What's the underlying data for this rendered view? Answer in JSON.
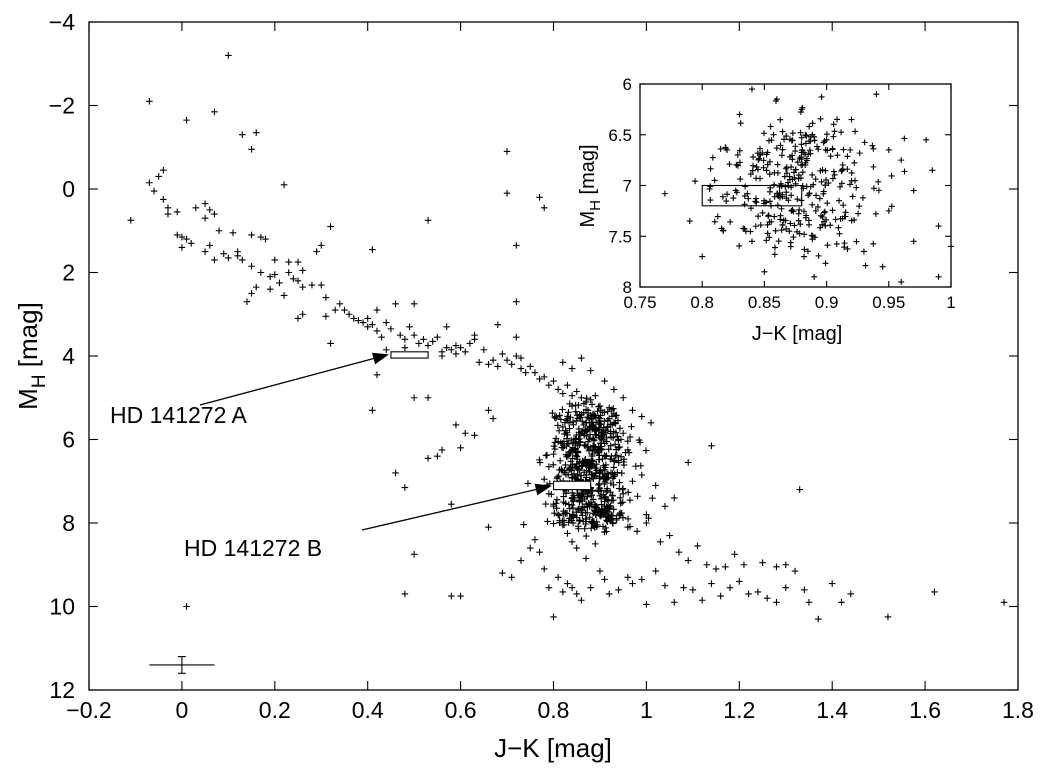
{
  "chart_data": [
    {
      "type": "scatter",
      "xlabel": "J−K [mag]",
      "ylabel": {
        "main": "M",
        "sub": "H",
        "unit": " [mag]"
      },
      "xlim": [
        -0.2,
        1.8
      ],
      "ylim": [
        12,
        -4
      ],
      "y_inverted": true,
      "x_ticks": [
        "−0.2",
        "0",
        "0.2",
        "0.4",
        "0.6",
        "0.8",
        "1",
        "1.2",
        "1.4",
        "1.6",
        "1.8"
      ],
      "y_ticks": [
        "−4",
        "−2",
        "0",
        "2",
        "4",
        "6",
        "8",
        "10",
        "12"
      ],
      "marker": "+",
      "grid": false,
      "error_bar": {
        "x": 0.0,
        "y": 11.4,
        "xerr": 0.07,
        "yerr": 0.2
      },
      "annotations": [
        {
          "text": "HD 141272 A",
          "target": {
            "x": 0.45,
            "y": 3.95
          },
          "box": {
            "x0": 0.45,
            "x1": 0.53,
            "y0": 3.9,
            "y1": 4.05
          }
        },
        {
          "text": "HD 141272 B",
          "target": {
            "x": 0.8,
            "y": 7.1
          },
          "box": {
            "x0": 0.8,
            "x1": 0.88,
            "y0": 7.0,
            "y1": 7.2
          }
        }
      ],
      "points": [
        [
          -0.11,
          0.75
        ],
        [
          -0.07,
          -2.1
        ],
        [
          -0.07,
          -0.15
        ],
        [
          -0.06,
          0.05
        ],
        [
          -0.05,
          -0.3
        ],
        [
          -0.04,
          -0.45
        ],
        [
          -0.04,
          0.25
        ],
        [
          -0.03,
          0.45
        ],
        [
          -0.03,
          0.6
        ],
        [
          -0.01,
          0.55
        ],
        [
          0.01,
          -1.65
        ],
        [
          0.03,
          0.45
        ],
        [
          0.05,
          0.35
        ],
        [
          0.05,
          0.7
        ],
        [
          0.06,
          0.5
        ],
        [
          0.07,
          -1.85
        ],
        [
          0.07,
          0.6
        ],
        [
          0.1,
          -3.2
        ],
        [
          0.13,
          -1.3
        ],
        [
          0.15,
          -0.95
        ],
        [
          0.16,
          -1.35
        ],
        [
          0.22,
          -0.1
        ],
        [
          0.15,
          1.1
        ],
        [
          0.17,
          1.15
        ],
        [
          0.18,
          1.2
        ],
        [
          0.12,
          1.5
        ],
        [
          0.13,
          1.7
        ],
        [
          0.2,
          1.7
        ],
        [
          0.23,
          1.75
        ],
        [
          0.25,
          1.75
        ],
        [
          0.26,
          1.95
        ],
        [
          0.29,
          1.5
        ],
        [
          0.3,
          1.35
        ],
        [
          0.32,
          0.9
        ],
        [
          0.08,
          1.0
        ],
        [
          0.11,
          1.05
        ],
        [
          -0.01,
          1.1
        ],
        [
          0.0,
          1.15
        ],
        [
          0.01,
          1.2
        ],
        [
          0.02,
          1.3
        ],
        [
          -0.0,
          1.4
        ],
        [
          0.06,
          1.35
        ],
        [
          0.05,
          1.5
        ],
        [
          0.07,
          1.7
        ],
        [
          0.09,
          1.55
        ],
        [
          0.1,
          1.65
        ],
        [
          0.12,
          1.6
        ],
        [
          0.15,
          1.85
        ],
        [
          0.17,
          2.0
        ],
        [
          0.19,
          2.1
        ],
        [
          0.2,
          2.05
        ],
        [
          0.21,
          2.25
        ],
        [
          0.23,
          2.0
        ],
        [
          0.24,
          2.15
        ],
        [
          0.25,
          2.2
        ],
        [
          0.26,
          2.35
        ],
        [
          0.28,
          2.3
        ],
        [
          0.19,
          2.4
        ],
        [
          0.15,
          2.5
        ],
        [
          0.14,
          2.7
        ],
        [
          0.16,
          2.35
        ],
        [
          0.22,
          2.55
        ],
        [
          0.25,
          3.1
        ],
        [
          0.26,
          3.0
        ],
        [
          0.3,
          2.3
        ],
        [
          0.31,
          2.6
        ],
        [
          0.31,
          3.05
        ],
        [
          0.32,
          3.7
        ],
        [
          0.33,
          2.9
        ],
        [
          0.34,
          2.75
        ],
        [
          0.35,
          2.9
        ],
        [
          0.36,
          3.0
        ],
        [
          0.37,
          3.1
        ],
        [
          0.38,
          3.15
        ],
        [
          0.39,
          3.2
        ],
        [
          0.4,
          3.1
        ],
        [
          0.4,
          3.3
        ],
        [
          0.41,
          3.25
        ],
        [
          0.42,
          3.4
        ],
        [
          0.42,
          2.9
        ],
        [
          0.43,
          3.55
        ],
        [
          0.44,
          3.2
        ],
        [
          0.45,
          3.35
        ],
        [
          0.46,
          2.75
        ],
        [
          0.47,
          3.5
        ],
        [
          0.48,
          3.6
        ],
        [
          0.48,
          3.8
        ],
        [
          0.49,
          3.3
        ],
        [
          0.5,
          2.75
        ],
        [
          0.5,
          3.5
        ],
        [
          0.51,
          3.7
        ],
        [
          0.52,
          3.6
        ],
        [
          0.53,
          3.75
        ],
        [
          0.54,
          3.65
        ],
        [
          0.55,
          3.55
        ],
        [
          0.56,
          3.9
        ],
        [
          0.57,
          3.8
        ],
        [
          0.58,
          3.85
        ],
        [
          0.59,
          3.95
        ],
        [
          0.6,
          3.8
        ],
        [
          0.62,
          3.7
        ],
        [
          0.63,
          3.5
        ],
        [
          0.64,
          4.15
        ],
        [
          0.66,
          4.2
        ],
        [
          0.67,
          4.1
        ],
        [
          0.68,
          4.25
        ],
        [
          0.7,
          4.1
        ],
        [
          0.71,
          4.2
        ],
        [
          0.72,
          4.0
        ],
        [
          0.73,
          4.3
        ],
        [
          0.74,
          4.4
        ],
        [
          0.75,
          4.25
        ],
        [
          0.76,
          4.4
        ],
        [
          0.77,
          4.55
        ],
        [
          0.78,
          4.5
        ],
        [
          0.79,
          4.7
        ],
        [
          0.8,
          4.6
        ],
        [
          0.81,
          4.8
        ],
        [
          0.82,
          4.9
        ],
        [
          0.83,
          4.7
        ],
        [
          0.84,
          4.95
        ],
        [
          0.85,
          4.85
        ],
        [
          0.86,
          5.0
        ],
        [
          0.87,
          5.1
        ],
        [
          0.88,
          5.05
        ],
        [
          0.89,
          4.95
        ],
        [
          0.9,
          5.2
        ],
        [
          0.91,
          5.35
        ],
        [
          0.92,
          5.5
        ],
        [
          0.93,
          5.6
        ],
        [
          0.63,
          3.6
        ],
        [
          0.56,
          4.0
        ],
        [
          0.57,
          3.3
        ],
        [
          0.59,
          3.75
        ],
        [
          0.61,
          3.9
        ],
        [
          0.65,
          3.85
        ],
        [
          0.69,
          3.95
        ],
        [
          0.72,
          3.55
        ],
        [
          0.73,
          4.05
        ],
        [
          0.68,
          3.25
        ],
        [
          0.44,
          3.85
        ],
        [
          0.42,
          4.45
        ],
        [
          0.41,
          5.3
        ],
        [
          0.5,
          5.0
        ],
        [
          0.53,
          5.0
        ],
        [
          0.53,
          6.45
        ],
        [
          0.55,
          6.4
        ],
        [
          0.56,
          6.25
        ],
        [
          0.59,
          5.65
        ],
        [
          0.61,
          5.85
        ],
        [
          0.63,
          5.9
        ],
        [
          0.66,
          5.3
        ],
        [
          0.67,
          5.5
        ],
        [
          0.46,
          6.8
        ],
        [
          0.48,
          7.15
        ],
        [
          0.58,
          7.55
        ],
        [
          0.6,
          6.2
        ],
        [
          0.5,
          8.75
        ],
        [
          0.48,
          9.7
        ],
        [
          0.58,
          9.75
        ],
        [
          0.6,
          9.75
        ],
        [
          0.7,
          -0.9
        ],
        [
          0.7,
          0.1
        ],
        [
          0.72,
          1.35
        ],
        [
          0.77,
          0.2
        ],
        [
          0.78,
          0.45
        ],
        [
          0.72,
          2.7
        ],
        [
          0.41,
          1.45
        ],
        [
          0.53,
          0.75
        ],
        [
          0.01,
          10.0
        ],
        [
          0.66,
          8.1
        ],
        [
          0.69,
          9.2
        ],
        [
          0.71,
          9.3
        ],
        [
          0.73,
          8.9
        ],
        [
          0.75,
          8.6
        ],
        [
          0.76,
          8.4
        ],
        [
          0.77,
          8.7
        ],
        [
          0.78,
          9.1
        ],
        [
          0.79,
          9.55
        ],
        [
          0.8,
          10.25
        ],
        [
          0.81,
          9.3
        ],
        [
          0.82,
          9.65
        ],
        [
          0.83,
          9.45
        ],
        [
          0.84,
          9.55
        ],
        [
          0.85,
          9.7
        ],
        [
          0.86,
          9.85
        ],
        [
          0.88,
          9.55
        ],
        [
          0.9,
          9.15
        ],
        [
          0.91,
          9.35
        ],
        [
          0.92,
          9.7
        ],
        [
          0.94,
          9.6
        ],
        [
          0.96,
          9.3
        ],
        [
          0.97,
          9.45
        ],
        [
          0.99,
          9.35
        ],
        [
          1.0,
          9.95
        ],
        [
          1.02,
          9.15
        ],
        [
          1.04,
          9.5
        ],
        [
          1.06,
          9.9
        ],
        [
          1.08,
          9.55
        ],
        [
          1.1,
          9.6
        ],
        [
          1.12,
          9.85
        ],
        [
          1.14,
          9.45
        ],
        [
          1.16,
          9.75
        ],
        [
          1.18,
          9.55
        ],
        [
          1.2,
          9.4
        ],
        [
          1.22,
          9.7
        ],
        [
          1.24,
          9.65
        ],
        [
          1.26,
          9.8
        ],
        [
          1.28,
          9.9
        ],
        [
          1.3,
          9.55
        ],
        [
          1.32,
          9.15
        ],
        [
          1.33,
          7.2
        ],
        [
          1.34,
          9.6
        ],
        [
          1.35,
          9.9
        ],
        [
          1.37,
          10.3
        ],
        [
          1.4,
          9.45
        ],
        [
          1.42,
          9.9
        ],
        [
          1.44,
          9.7
        ],
        [
          1.52,
          10.25
        ],
        [
          1.62,
          9.65
        ],
        [
          1.77,
          9.9
        ],
        [
          0.98,
          8.2
        ],
        [
          1.0,
          8.0
        ],
        [
          1.03,
          8.45
        ],
        [
          1.05,
          8.3
        ],
        [
          1.07,
          8.7
        ],
        [
          1.09,
          8.9
        ],
        [
          1.11,
          8.55
        ],
        [
          1.13,
          9.0
        ],
        [
          1.15,
          9.1
        ],
        [
          1.17,
          9.05
        ],
        [
          1.19,
          8.75
        ],
        [
          1.21,
          9.0
        ],
        [
          1.25,
          8.95
        ],
        [
          1.28,
          9.05
        ],
        [
          1.3,
          9.0
        ],
        [
          1.14,
          6.15
        ],
        [
          1.09,
          6.55
        ],
        [
          1.06,
          7.4
        ],
        [
          1.04,
          7.6
        ],
        [
          1.0,
          7.8
        ],
        [
          0.96,
          8.1
        ],
        [
          0.95,
          7.3
        ],
        [
          0.97,
          7.0
        ],
        [
          0.99,
          6.85
        ],
        [
          1.02,
          7.1
        ],
        [
          0.94,
          6.0
        ],
        [
          0.93,
          6.5
        ],
        [
          0.96,
          6.25
        ],
        [
          0.95,
          5.85
        ],
        [
          0.9,
          5.5
        ],
        [
          0.89,
          5.8
        ],
        [
          0.87,
          5.6
        ],
        [
          0.86,
          5.4
        ],
        [
          0.84,
          5.2
        ],
        [
          0.83,
          5.5
        ],
        [
          0.82,
          5.7
        ],
        [
          0.81,
          6.05
        ],
        [
          0.8,
          6.35
        ],
        [
          0.79,
          6.65
        ],
        [
          0.78,
          6.95
        ],
        [
          0.79,
          7.3
        ],
        [
          0.8,
          7.55
        ],
        [
          0.81,
          7.8
        ],
        [
          0.82,
          8.05
        ],
        [
          0.83,
          8.25
        ],
        [
          0.84,
          8.45
        ],
        [
          0.85,
          8.6
        ],
        [
          0.87,
          8.85
        ],
        [
          0.89,
          8.5
        ],
        [
          0.86,
          4.05
        ],
        [
          0.84,
          4.3
        ],
        [
          0.82,
          4.15
        ],
        [
          0.88,
          4.35
        ],
        [
          0.91,
          4.6
        ],
        [
          0.93,
          4.8
        ],
        [
          0.95,
          5.0
        ],
        [
          0.97,
          5.3
        ],
        [
          0.99,
          5.45
        ],
        [
          1.01,
          5.6
        ]
      ],
      "cluster": {
        "center": [
          0.88,
          6.7
        ],
        "spread": [
          0.055,
          1.4
        ],
        "count": 620
      }
    },
    {
      "type": "scatter",
      "role": "inset",
      "xlabel": "J−K [mag]",
      "ylabel": {
        "main": "M",
        "sub": "H",
        "unit": " [mag]"
      },
      "xlim": [
        0.75,
        1.0
      ],
      "ylim": [
        8,
        6
      ],
      "y_inverted": true,
      "x_ticks": [
        "0.75",
        "0.8",
        "0.85",
        "0.9",
        "0.95",
        "1"
      ],
      "y_ticks": [
        "6",
        "6.5",
        "7",
        "7.5",
        "8"
      ],
      "marker": "+",
      "box": {
        "x0": 0.8,
        "x1": 0.88,
        "y0": 7.0,
        "y1": 7.2
      },
      "points": [
        [
          0.77,
          7.08
        ],
        [
          0.79,
          7.35
        ],
        [
          0.8,
          7.7
        ],
        [
          0.81,
          6.95
        ],
        [
          0.82,
          6.65
        ],
        [
          0.83,
          6.3
        ],
        [
          0.84,
          6.05
        ],
        [
          0.84,
          7.55
        ],
        [
          0.85,
          7.85
        ],
        [
          0.86,
          6.15
        ],
        [
          0.87,
          7.45
        ],
        [
          0.88,
          6.25
        ],
        [
          0.89,
          7.9
        ],
        [
          0.9,
          6.55
        ],
        [
          0.91,
          7.15
        ],
        [
          0.92,
          6.35
        ],
        [
          0.93,
          7.65
        ],
        [
          0.94,
          6.1
        ],
        [
          0.95,
          7.25
        ],
        [
          0.96,
          6.75
        ],
        [
          0.97,
          7.55
        ],
        [
          0.98,
          6.55
        ],
        [
          0.99,
          7.4
        ],
        [
          1.0,
          7.6
        ],
        [
          0.985,
          6.85
        ],
        [
          0.96,
          7.95
        ],
        [
          0.945,
          7.8
        ],
        [
          0.97,
          7.05
        ],
        [
          0.99,
          7.9
        ],
        [
          0.95,
          6.65
        ]
      ],
      "cluster": {
        "center": [
          0.875,
          7.0
        ],
        "spread": [
          0.04,
          0.55
        ],
        "count": 340
      }
    }
  ]
}
